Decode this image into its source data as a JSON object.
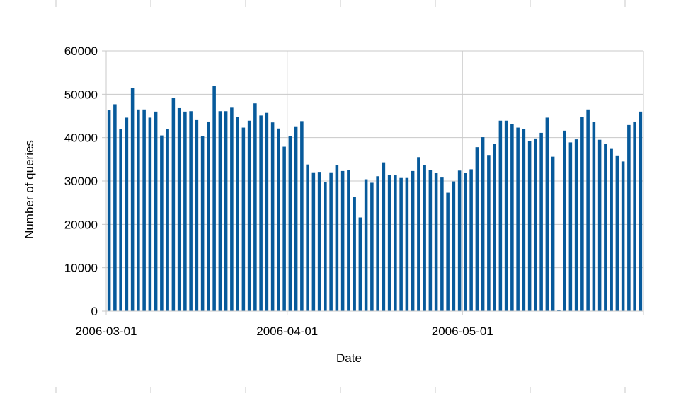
{
  "chart_data": {
    "type": "bar",
    "xlabel": "Date",
    "ylabel": "Number of queries",
    "ylim": [
      0,
      60000
    ],
    "yticks": [
      0,
      10000,
      20000,
      30000,
      40000,
      50000,
      60000
    ],
    "xticks": [
      "2006-03-01",
      "2006-04-01",
      "2006-05-01"
    ],
    "grid": true,
    "legend": "none",
    "bar_color": "#075a9b",
    "grid_color": "#c8c8c8",
    "x": [
      "2006-03-01",
      "2006-03-02",
      "2006-03-03",
      "2006-03-04",
      "2006-03-05",
      "2006-03-06",
      "2006-03-07",
      "2006-03-08",
      "2006-03-09",
      "2006-03-10",
      "2006-03-11",
      "2006-03-12",
      "2006-03-13",
      "2006-03-14",
      "2006-03-15",
      "2006-03-16",
      "2006-03-17",
      "2006-03-18",
      "2006-03-19",
      "2006-03-20",
      "2006-03-21",
      "2006-03-22",
      "2006-03-23",
      "2006-03-24",
      "2006-03-25",
      "2006-03-26",
      "2006-03-27",
      "2006-03-28",
      "2006-03-29",
      "2006-03-30",
      "2006-03-31",
      "2006-04-01",
      "2006-04-02",
      "2006-04-03",
      "2006-04-04",
      "2006-04-05",
      "2006-04-06",
      "2006-04-07",
      "2006-04-08",
      "2006-04-09",
      "2006-04-10",
      "2006-04-11",
      "2006-04-12",
      "2006-04-13",
      "2006-04-14",
      "2006-04-15",
      "2006-04-16",
      "2006-04-17",
      "2006-04-18",
      "2006-04-19",
      "2006-04-20",
      "2006-04-21",
      "2006-04-22",
      "2006-04-23",
      "2006-04-24",
      "2006-04-25",
      "2006-04-26",
      "2006-04-27",
      "2006-04-28",
      "2006-04-29",
      "2006-04-30",
      "2006-05-01",
      "2006-05-02",
      "2006-05-03",
      "2006-05-04",
      "2006-05-05",
      "2006-05-06",
      "2006-05-07",
      "2006-05-08",
      "2006-05-09",
      "2006-05-10",
      "2006-05-11",
      "2006-05-12",
      "2006-05-13",
      "2006-05-14",
      "2006-05-15",
      "2006-05-16",
      "2006-05-17",
      "2006-05-18",
      "2006-05-19",
      "2006-05-20",
      "2006-05-21",
      "2006-05-22",
      "2006-05-23",
      "2006-05-24",
      "2006-05-25",
      "2006-05-26",
      "2006-05-27",
      "2006-05-28",
      "2006-05-29",
      "2006-05-30",
      "2006-05-31"
    ],
    "values": [
      46300,
      47700,
      41900,
      44600,
      51400,
      46500,
      46500,
      44600,
      46000,
      40500,
      41900,
      49100,
      46800,
      46000,
      46100,
      44200,
      40400,
      43700,
      51900,
      46100,
      46100,
      46900,
      44700,
      42300,
      43900,
      47900,
      45100,
      45700,
      43500,
      42100,
      37900,
      40300,
      42600,
      43800,
      33800,
      32000,
      32100,
      29800,
      32000,
      33700,
      32300,
      32500,
      26400,
      21600,
      30400,
      29600,
      31100,
      34300,
      31400,
      31300,
      30700,
      30700,
      32300,
      35500,
      33600,
      32600,
      31800,
      30800,
      27300,
      29900,
      32400,
      31800,
      32700,
      37800,
      40100,
      36000,
      38600,
      43900,
      43900,
      43200,
      42300,
      42000,
      39200,
      39800,
      41100,
      44600,
      35600,
      300,
      41600,
      38900,
      39600,
      44700,
      46500,
      43600,
      39500,
      38600,
      37400,
      35900,
      34500,
      42900,
      43700,
      46000
    ]
  }
}
